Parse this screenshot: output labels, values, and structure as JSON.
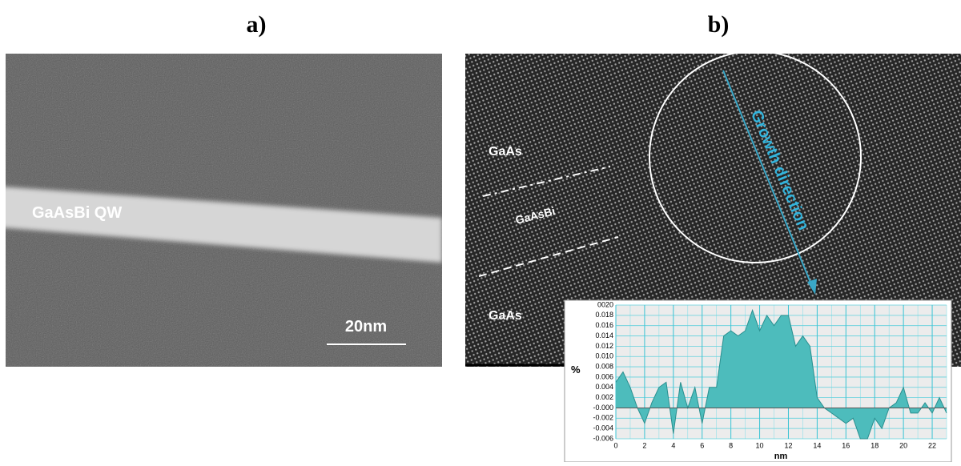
{
  "panels": [
    {
      "label": "a)",
      "annotations": [
        "GaAsBi QW"
      ],
      "scale_bar": "20nm"
    },
    {
      "label": "b)",
      "annotations": [
        "GaAs",
        "GaAsBi",
        "GaAs",
        "Growth direction"
      ]
    }
  ],
  "chart_data": {
    "type": "area",
    "x_label": "nm",
    "y_label": "%",
    "color": "#4dbcbc",
    "grid": true,
    "x": [
      0,
      0.5,
      1,
      1.5,
      2,
      2.5,
      3,
      3.5,
      4,
      4.5,
      5,
      5.5,
      6,
      6.5,
      7,
      7.5,
      8,
      8.5,
      9,
      9.5,
      10,
      10.5,
      11,
      11.5,
      12,
      12.5,
      13,
      13.5,
      14,
      14.5,
      15,
      15.5,
      16,
      16.5,
      17,
      17.5,
      18,
      18.5,
      19,
      19.5,
      20,
      20.5,
      21,
      21.5,
      22,
      22.5,
      23
    ],
    "values": [
      0.005,
      0.007,
      0.004,
      0.0,
      -0.003,
      0.001,
      0.004,
      0.005,
      -0.005,
      0.005,
      0.0,
      0.004,
      -0.003,
      0.004,
      0.004,
      0.014,
      0.015,
      0.014,
      0.015,
      0.019,
      0.015,
      0.018,
      0.016,
      0.018,
      0.018,
      0.012,
      0.014,
      0.012,
      0.002,
      0.0,
      -0.001,
      -0.002,
      -0.003,
      -0.002,
      -0.006,
      -0.006,
      -0.002,
      -0.004,
      0.0,
      0.001,
      0.004,
      -0.001,
      -0.001,
      0.001,
      -0.001,
      0.002,
      -0.001
    ],
    "xlim": [
      0,
      23
    ],
    "xticks": [
      0,
      2,
      4,
      6,
      8,
      10,
      12,
      14,
      16,
      18,
      20,
      22
    ],
    "ylim": [
      -0.006,
      0.02
    ],
    "yticks": [
      {
        "value": 0.02,
        "label": "0020"
      },
      0.018,
      0.016,
      0.014,
      0.012,
      {
        "value": 0.01,
        "label": "0.010"
      },
      0.008,
      0.006,
      0.004,
      0.002,
      {
        "value": 0,
        "label": "-0.000"
      },
      -0.002,
      -0.004,
      -0.006
    ]
  }
}
